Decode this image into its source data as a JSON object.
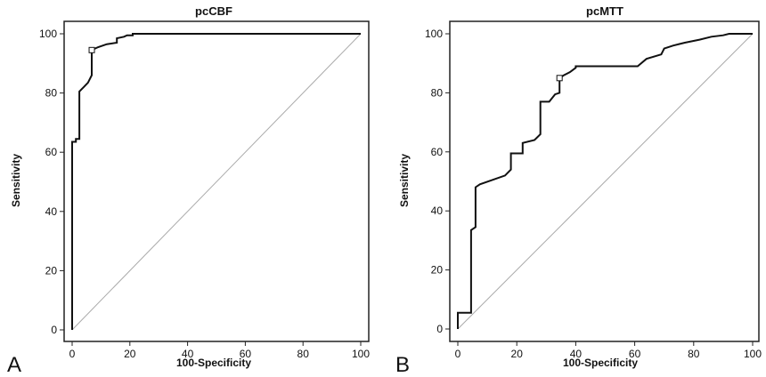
{
  "chart_data": [
    {
      "type": "line",
      "panel_label": "A",
      "title": "pcCBF",
      "xlabel": "100-Specificity",
      "ylabel": "Sensitivity",
      "xlim": [
        0,
        100
      ],
      "ylim": [
        0,
        100
      ],
      "xticks": [
        0,
        20,
        40,
        60,
        80,
        100
      ],
      "yticks": [
        0,
        20,
        40,
        60,
        80,
        100
      ],
      "grid": false,
      "series": [
        {
          "role": "roc-curve",
          "x": [
            0,
            0,
            1.3,
            1.3,
            2.5,
            2.5,
            4,
            5.5,
            6.8,
            6.8,
            9,
            12,
            15.5,
            15.5,
            18,
            19,
            21,
            21,
            40,
            60,
            80,
            100
          ],
          "y": [
            0,
            63.5,
            63.5,
            64.5,
            64.5,
            80.5,
            82,
            83.5,
            86,
            94.5,
            95.5,
            96.5,
            97,
            98.5,
            99,
            99.5,
            99.5,
            100,
            100,
            100,
            100,
            100
          ]
        },
        {
          "role": "reference-diagonal",
          "x": [
            0,
            100
          ],
          "y": [
            0,
            100
          ]
        }
      ],
      "marker": {
        "shape": "open-square",
        "x": 6.8,
        "y": 94.5
      }
    },
    {
      "type": "line",
      "panel_label": "B",
      "title": "pcMTT",
      "xlabel": "100-Specificity",
      "ylabel": "Sensitivity",
      "xlim": [
        0,
        100
      ],
      "ylim": [
        0,
        100
      ],
      "xticks": [
        0,
        20,
        40,
        60,
        80,
        100
      ],
      "yticks": [
        0,
        20,
        40,
        60,
        80,
        100
      ],
      "grid": false,
      "series": [
        {
          "role": "roc-curve",
          "x": [
            0,
            0,
            4.5,
            4.5,
            6,
            6,
            7.5,
            16,
            18,
            18,
            22,
            22,
            26,
            28,
            28,
            31,
            33,
            34.5,
            34.5,
            36,
            38,
            40,
            40,
            61,
            64,
            69,
            70,
            73,
            77,
            82,
            86,
            90,
            92,
            100
          ],
          "y": [
            0,
            5.5,
            5.5,
            33.5,
            34.5,
            48,
            49,
            52,
            54,
            59.5,
            59.5,
            63,
            64,
            66,
            77,
            77,
            79.5,
            80,
            85,
            86,
            87,
            88.5,
            89,
            89,
            91.5,
            93,
            95,
            96,
            97,
            98,
            99,
            99.5,
            100,
            100
          ]
        },
        {
          "role": "reference-diagonal",
          "x": [
            0,
            100
          ],
          "y": [
            0,
            100
          ]
        }
      ],
      "marker": {
        "shape": "open-square",
        "x": 34.5,
        "y": 85
      }
    }
  ]
}
